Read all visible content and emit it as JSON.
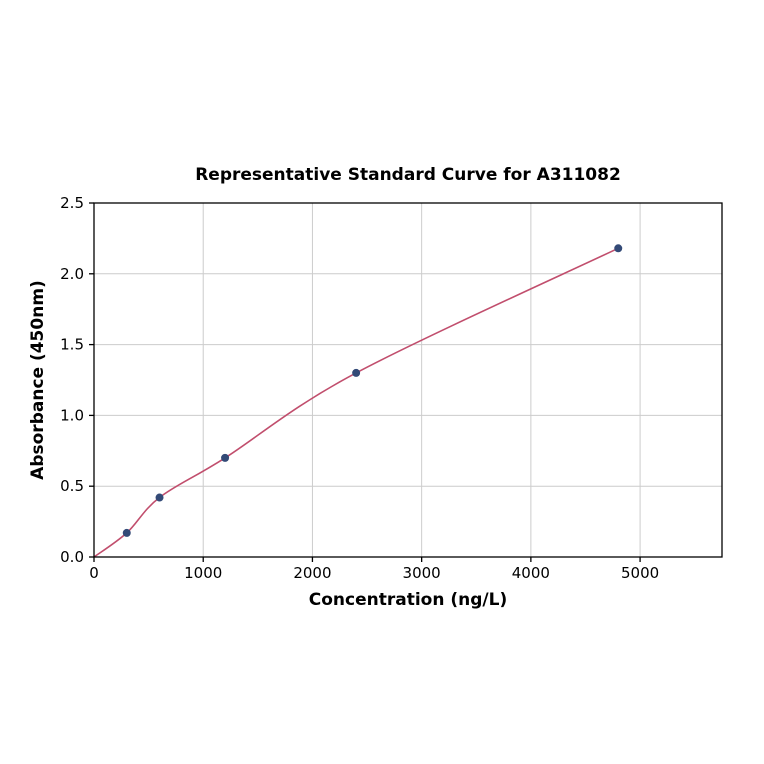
{
  "page": {
    "background_color": "#ffffff"
  },
  "chart_data": {
    "type": "scatter",
    "title": "Representative Standard Curve for A311082",
    "xlabel": "Concentration (ng/L)",
    "ylabel": "Absorbance (450nm)",
    "xlim": [
      0,
      5750
    ],
    "ylim": [
      0,
      2.5
    ],
    "x_ticks": [
      0,
      1000,
      2000,
      3000,
      4000,
      5000
    ],
    "x_tick_labels": [
      "0",
      "1000",
      "2000",
      "3000",
      "4000",
      "5000"
    ],
    "y_ticks": [
      0,
      0.5,
      1,
      1.5,
      2,
      2.5
    ],
    "y_tick_labels": [
      "0.0",
      "0.5",
      "1.0",
      "1.5",
      "2.0",
      "2.5"
    ],
    "grid": true,
    "legend_position": "none",
    "grid_color": "#cccccc",
    "axis_color": "#000000",
    "series": [
      {
        "name": "standard curve",
        "style": "line+scatter",
        "x": [
          300,
          600,
          1200,
          2400,
          4800
        ],
        "y": [
          0.17,
          0.42,
          0.7,
          1.3,
          2.18
        ],
        "curve_origin": [
          0,
          0
        ],
        "line_color": "#c14e6d",
        "marker_color": "#334a77"
      }
    ]
  }
}
